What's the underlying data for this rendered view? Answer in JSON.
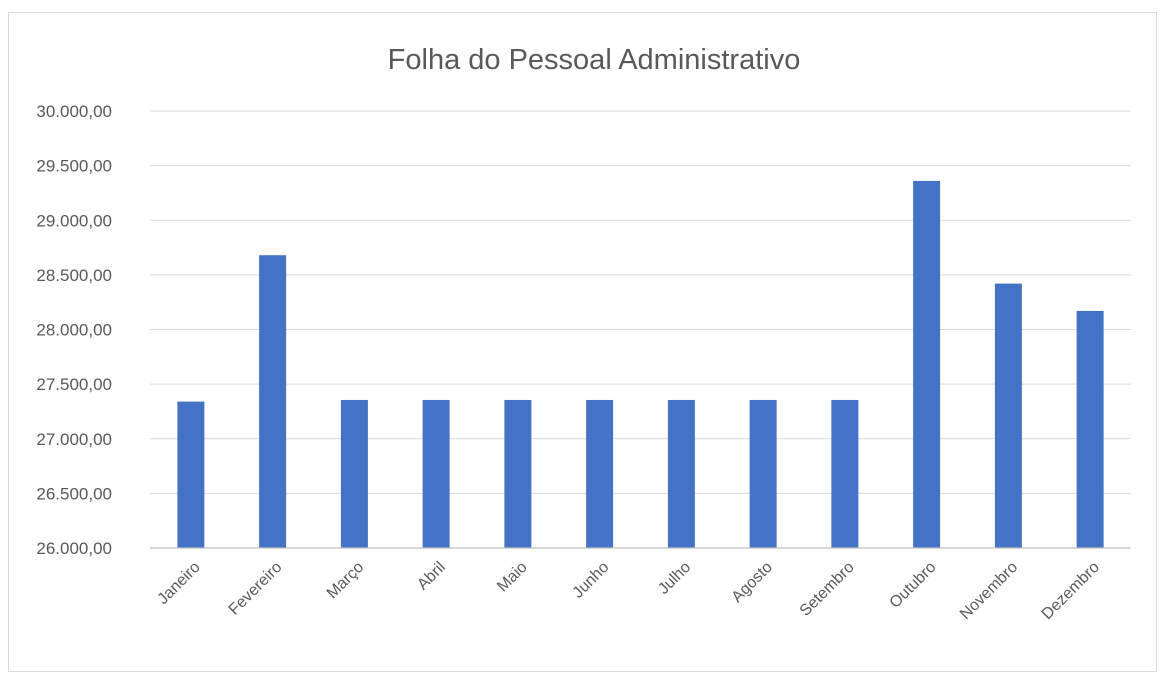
{
  "chart_data": {
    "type": "bar",
    "title": "Folha do Pessoal Administrativo",
    "xlabel": "",
    "ylabel": "",
    "categories": [
      "Janeiro",
      "Fevereiro",
      "Março",
      "Abril",
      "Maio",
      "Junho",
      "Julho",
      "Agosto",
      "Setembro",
      "Outubro",
      "Novembro",
      "Dezembro"
    ],
    "values": [
      27340,
      28680,
      27355,
      27355,
      27355,
      27355,
      27355,
      27355,
      27355,
      29360,
      28420,
      28170
    ],
    "ylim": [
      26000,
      30000
    ],
    "yticks": [
      26000,
      26500,
      27000,
      27500,
      28000,
      28500,
      29000,
      29500,
      30000
    ],
    "ytick_labels": [
      "26.000,00",
      "26.500,00",
      "27.000,00",
      "27.500,00",
      "28.000,00",
      "28.500,00",
      "29.000,00",
      "29.500,00",
      "30.000,00"
    ],
    "grid": true,
    "legend": "none",
    "bar_color": "#4472c4"
  }
}
